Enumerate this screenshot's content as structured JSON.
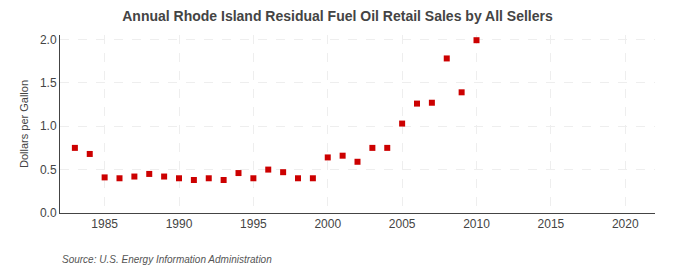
{
  "chart_data": {
    "type": "scatter",
    "title": "Annual Rhode Island Residual Fuel Oil Retail Sales by All Sellers",
    "ylabel": "Dollars per Gallon",
    "annotations": [
      "Source: U.S. Energy Information Administration"
    ],
    "x": [
      1983,
      1984,
      1985,
      1986,
      1987,
      1988,
      1989,
      1990,
      1991,
      1992,
      1993,
      1994,
      1995,
      1996,
      1997,
      1998,
      1999,
      2000,
      2001,
      2002,
      2003,
      2004,
      2005,
      2006,
      2007,
      2008,
      2009,
      2010
    ],
    "values": [
      0.75,
      0.68,
      0.41,
      0.4,
      0.42,
      0.45,
      0.42,
      0.4,
      0.38,
      0.4,
      0.38,
      0.46,
      0.4,
      0.5,
      0.47,
      0.4,
      0.4,
      0.64,
      0.66,
      0.59,
      0.75,
      0.75,
      1.03,
      1.26,
      1.27,
      1.78,
      1.39,
      1.99
    ],
    "color": "#cc0000",
    "marker": "square",
    "xlim": [
      1982,
      2022
    ],
    "ylim": [
      0.0,
      2.05
    ],
    "xticks": [
      1985,
      1990,
      1995,
      2000,
      2005,
      2010,
      2015,
      2020
    ],
    "yticks": [
      {
        "value": 0.0,
        "label": "0.0"
      },
      0.5,
      {
        "value": 1.0,
        "label": "1.0"
      },
      1.5,
      {
        "value": 2.0,
        "label": "2.0"
      }
    ],
    "grid": true
  }
}
